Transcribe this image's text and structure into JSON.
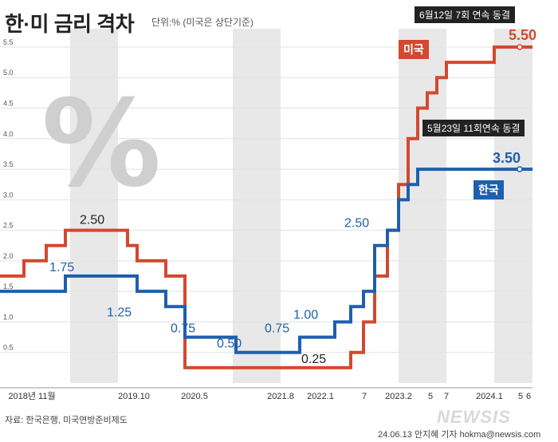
{
  "title": "한·미 금리 격차",
  "unit_note": "단위:% (미국은 상단기준)",
  "source": "자료: 한국은행, 미국연방준비제도",
  "credit": "24.06.13 안지혜 기자 hokma@newsis.com",
  "logo": "NEWSIS",
  "colors": {
    "us": "#d2492f",
    "korea": "#1e5fae",
    "band": "#e8e8e8",
    "text": "#222222"
  },
  "chart_data": {
    "type": "line",
    "step": true,
    "ylim": [
      0,
      5.8
    ],
    "yticks": [
      "0.5",
      "1.0",
      "1.5",
      "2.0",
      "2.5",
      "3.0",
      "3.5",
      "4.0",
      "4.5",
      "5.0",
      "5.5"
    ],
    "x_labels": [
      "2018년 11월",
      "2019.10",
      "2020.5",
      "2021.8",
      "2022.1",
      "7",
      "2023.2",
      "5",
      "7",
      "2024.1",
      "5",
      "6"
    ],
    "series": [
      {
        "name": "미국",
        "color": "#d2492f",
        "values": [
          1.75,
          2.0,
          2.25,
          2.5,
          2.5,
          2.25,
          2.0,
          1.75,
          0.25,
          0.25,
          0.25,
          0.25,
          0.25,
          0.25,
          0.5,
          1.0,
          1.75,
          2.5,
          3.25,
          4.0,
          4.5,
          4.75,
          5.0,
          5.25,
          5.5,
          5.5,
          5.5
        ]
      },
      {
        "name": "한국",
        "color": "#1e5fae",
        "values": [
          1.5,
          1.5,
          1.5,
          1.75,
          1.75,
          1.75,
          1.5,
          1.25,
          0.75,
          0.5,
          0.5,
          0.5,
          0.75,
          1.0,
          1.25,
          1.5,
          2.25,
          2.5,
          3.0,
          3.25,
          3.5,
          3.5,
          3.5,
          3.5,
          3.5,
          3.5,
          3.5
        ]
      }
    ],
    "annotations": [
      "2.50",
      "1.75",
      "1.25",
      "0.75",
      "0.50",
      "0.75",
      "1.00",
      "0.25",
      "2.50"
    ],
    "callouts": {
      "us": "6월12일 7회 연속 동결",
      "korea": "5월23일 11회연속 동결"
    },
    "final_values": {
      "us": "5.50",
      "korea": "3.50"
    },
    "legend": [
      "미국",
      "한국"
    ]
  }
}
